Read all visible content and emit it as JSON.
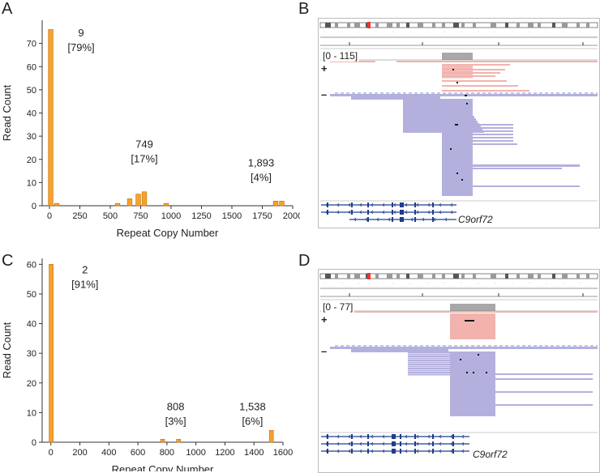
{
  "panels": {
    "A": "A",
    "B": "B",
    "C": "C",
    "D": "D"
  },
  "colors": {
    "bar": "#f5a22d",
    "bar_edge": "#c46d00",
    "plus_strand": "#f2b3ae",
    "minus_strand": "#b4b0de",
    "coverage": "#a8a8a8",
    "gene": "#1f3d8c"
  },
  "chart_data": [
    {
      "panel": "A",
      "type": "bar",
      "title": "",
      "xlabel": "Repeat Copy Number",
      "ylabel": "Read Count",
      "xlim": [
        -60,
        2000
      ],
      "ylim": [
        0,
        80
      ],
      "xticks": [
        0,
        250,
        500,
        750,
        1000,
        1250,
        1500,
        1750,
        2000
      ],
      "yticks": [
        0,
        10,
        20,
        30,
        40,
        50,
        60,
        70
      ],
      "bin_width": 50,
      "bars": [
        {
          "x": 10,
          "value": 76
        },
        {
          "x": 60,
          "value": 1
        },
        {
          "x": 560,
          "value": 1
        },
        {
          "x": 660,
          "value": 3
        },
        {
          "x": 730,
          "value": 5
        },
        {
          "x": 780,
          "value": 6
        },
        {
          "x": 960,
          "value": 1
        },
        {
          "x": 1860,
          "value": 2
        },
        {
          "x": 1910,
          "value": 2
        }
      ],
      "annotations": [
        {
          "label": "9",
          "pct": "[79%]",
          "at_x": 260,
          "at_y": 73
        },
        {
          "label": "749",
          "pct": "[17%]",
          "at_x": 780,
          "at_y": 25
        },
        {
          "label": "1,893",
          "pct": "[4%]",
          "at_x": 1740,
          "at_y": 17
        }
      ]
    },
    {
      "panel": "C",
      "type": "bar",
      "title": "",
      "xlabel": "Repeat Copy Number",
      "ylabel": "Read Count",
      "xlim": [
        -60,
        1600
      ],
      "ylim": [
        0,
        62
      ],
      "xticks": [
        0,
        200,
        400,
        600,
        800,
        1000,
        1200,
        1400,
        1600
      ],
      "yticks": [
        0,
        10,
        20,
        30,
        40,
        50,
        60
      ],
      "bin_width": 40,
      "bars": [
        {
          "x": 2,
          "value": 60
        },
        {
          "x": 770,
          "value": 1
        },
        {
          "x": 880,
          "value": 1
        },
        {
          "x": 1520,
          "value": 4
        }
      ],
      "annotations": [
        {
          "label": "2",
          "pct": "[91%]",
          "at_x": 235,
          "at_y": 57
        },
        {
          "label": "808",
          "pct": "[3%]",
          "at_x": 860,
          "at_y": 10.8
        },
        {
          "label": "1,538",
          "pct": "[6%]",
          "at_x": 1390,
          "at_y": 10.8
        }
      ]
    }
  ],
  "igv": {
    "B": {
      "range": "[0 - 115]",
      "plus": "+",
      "minus": "–",
      "gene": "C9orf72"
    },
    "D": {
      "range": "[0 - 77]",
      "plus": "+",
      "minus": "–",
      "gene": "C9orf72"
    }
  }
}
